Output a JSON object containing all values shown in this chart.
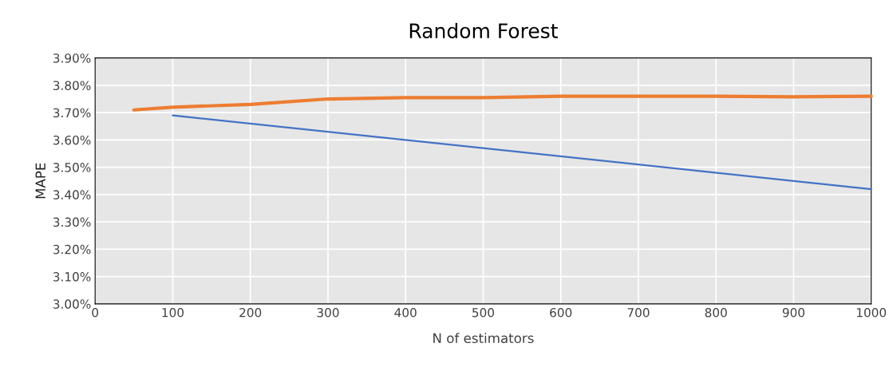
{
  "chart_data": {
    "type": "line",
    "title": "Random Forest",
    "xlabel": "N of estimators",
    "ylabel": "MAPE",
    "series": [
      {
        "color": "#ed7d31",
        "x": [
          50,
          100,
          200,
          300,
          400,
          500,
          600,
          700,
          800,
          900,
          1000
        ],
        "values": [
          3.71,
          3.72,
          3.73,
          3.75,
          3.755,
          3.755,
          3.76,
          3.76,
          3.76,
          3.758,
          3.76
        ]
      },
      {
        "color": "#4472c4",
        "x": [
          100,
          1000
        ],
        "values": [
          3.69,
          3.42
        ]
      }
    ],
    "xlim": [
      0,
      1000
    ],
    "xticks": [
      0,
      100,
      200,
      300,
      400,
      500,
      600,
      700,
      800,
      900,
      1000
    ],
    "ylim": [
      3.0,
      3.9
    ],
    "yticks": [
      {
        "value": 3.0,
        "label": "3.00%"
      },
      {
        "value": 3.1,
        "label": "3.10%"
      },
      {
        "value": 3.2,
        "label": "3.20%"
      },
      {
        "value": 3.3,
        "label": "3.30%"
      },
      {
        "value": 3.4,
        "label": "3.40%"
      },
      {
        "value": 3.5,
        "label": "3.50%"
      },
      {
        "value": 3.6,
        "label": "3.60%"
      },
      {
        "value": 3.7,
        "label": "3.70%"
      },
      {
        "value": 3.8,
        "label": "3.80%"
      },
      {
        "value": 3.9,
        "label": "3.90%"
      }
    ],
    "grid": true,
    "marker": "none",
    "line_style": "solid"
  }
}
